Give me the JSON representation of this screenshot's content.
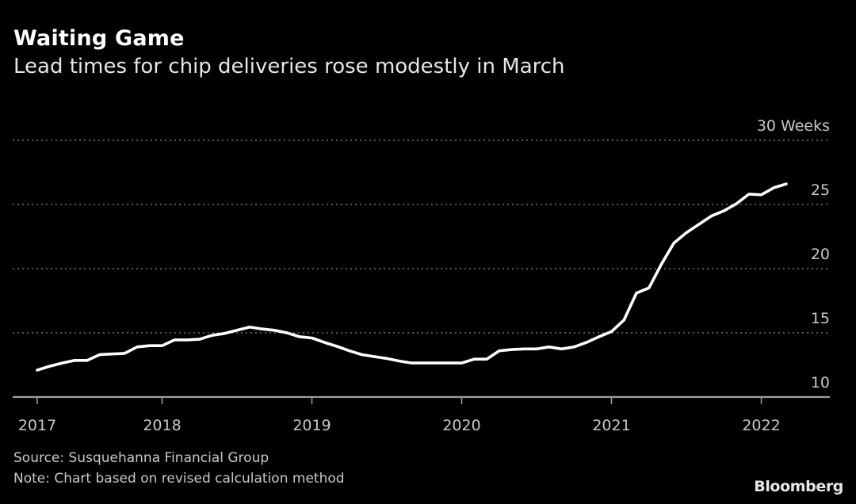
{
  "header": {
    "title": "Waiting Game",
    "subtitle": "Lead times for chip deliveries rose modestly in March"
  },
  "footer": {
    "source": "Source: Susquehanna Financial Group",
    "note": "Note: Chart based on revised calculation method",
    "brand": "Bloomberg"
  },
  "colors": {
    "background": "#000000",
    "line": "#ffffff",
    "grid": "#8a8a8a",
    "axis": "#a0a0a0",
    "text": "#c8c8c8"
  },
  "chart_data": {
    "type": "line",
    "title": "Waiting Game",
    "subtitle": "Lead times for chip deliveries rose modestly in March",
    "xlabel": "",
    "ylabel": "Weeks",
    "unit_label": "Weeks",
    "ylim": [
      10,
      30
    ],
    "yticks": [
      10,
      15,
      20,
      25,
      30
    ],
    "ytick_labels": [
      "10",
      "15",
      "20",
      "25",
      "30 Weeks"
    ],
    "y_axis_position": "right",
    "grid": true,
    "grid_style": "dotted horizontal",
    "legend": "none",
    "x_start": "2017-03",
    "x_end": "2022-03",
    "xticks": [
      {
        "label": "2017",
        "month_index": 0
      },
      {
        "label": "2018",
        "month_index": 10
      },
      {
        "label": "2019",
        "month_index": 22
      },
      {
        "label": "2020",
        "month_index": 34
      },
      {
        "label": "2021",
        "month_index": 46
      },
      {
        "label": "2022",
        "month_index": 58
      }
    ],
    "series": [
      {
        "name": "Chip delivery lead time (weeks)",
        "frequency": "monthly",
        "values": [
          12.1,
          12.4,
          12.65,
          12.85,
          12.85,
          13.3,
          13.35,
          13.4,
          13.9,
          14.0,
          14.0,
          14.45,
          14.45,
          14.5,
          14.8,
          14.95,
          15.2,
          15.45,
          15.3,
          15.2,
          15.0,
          14.7,
          14.6,
          14.25,
          13.95,
          13.6,
          13.3,
          13.15,
          13.0,
          12.8,
          12.65,
          12.65,
          12.65,
          12.65,
          12.65,
          12.95,
          12.95,
          13.6,
          13.7,
          13.75,
          13.75,
          13.9,
          13.75,
          13.9,
          14.25,
          14.7,
          15.1,
          16.0,
          18.1,
          18.5,
          20.35,
          22.0,
          22.8,
          23.45,
          24.1,
          24.5,
          25.05,
          25.8,
          25.75,
          26.3,
          26.6
        ]
      }
    ]
  }
}
